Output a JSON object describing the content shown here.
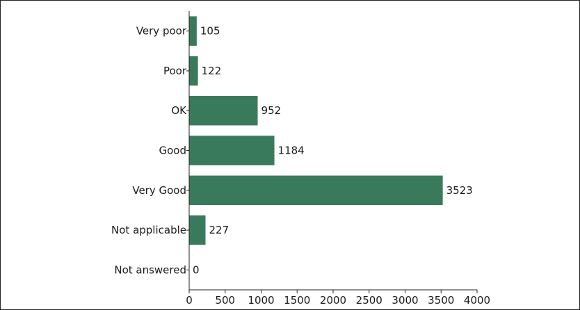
{
  "chart_data": {
    "type": "bar",
    "orientation": "horizontal",
    "categories": [
      "Very poor",
      "Poor",
      "OK",
      "Good",
      "Very Good",
      "Not applicable",
      "Not answered"
    ],
    "values": [
      105,
      122,
      952,
      1184,
      3523,
      227,
      0
    ],
    "title": "",
    "xlabel": "",
    "ylabel": "",
    "xlim": [
      0,
      4000
    ],
    "xticks": [
      0,
      500,
      1000,
      1500,
      2000,
      2500,
      3000,
      3500,
      4000
    ],
    "grid": false,
    "legend": "none",
    "bar_color": "#3a7a5c",
    "data_labels": true
  }
}
